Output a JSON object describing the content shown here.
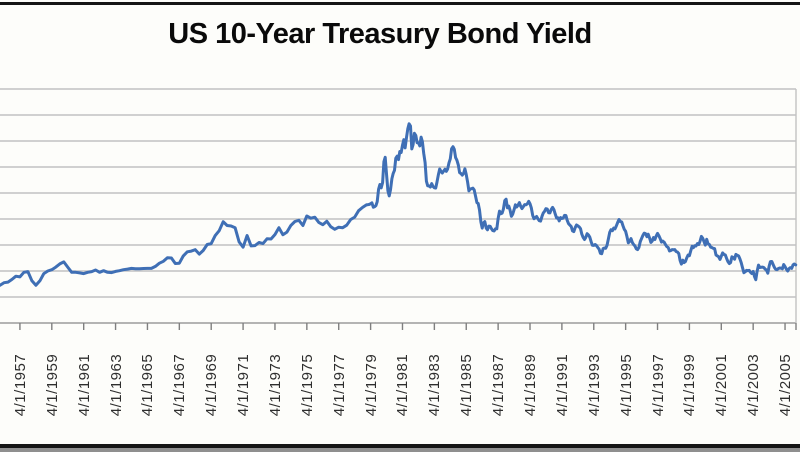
{
  "page": {
    "title": "US 10-Year Treasury Bond Yield"
  },
  "colors": {
    "background": "#fdfdfa",
    "line": "#3f6fb5",
    "gridline": "#c2c2c2",
    "axis": "#9b9b9b",
    "tick": "#7f7f7f",
    "title_text": "#0a0a0a",
    "label_text": "#2e2e2e",
    "frame_bar": "#151515"
  },
  "chart_data": {
    "type": "line",
    "title": "US 10-Year Treasury Bond Yield",
    "xlabel": "",
    "ylabel": "",
    "grid": true,
    "legend": "none",
    "ylim": [
      0,
      18
    ],
    "y_gridline_step": 2,
    "y_axis_labels_visible": false,
    "x_range_years": [
      1956.0,
      2006.2
    ],
    "x_first_tick_year": 1957.25,
    "x_tick_interval_years": 2,
    "x_tick_labels": [
      "4/1/1957",
      "4/1/1959",
      "4/1/1961",
      "4/1/1963",
      "4/1/1965",
      "4/1/1967",
      "4/1/1969",
      "4/1/1971",
      "4/1/1973",
      "4/1/1975",
      "4/1/1977",
      "4/1/1979",
      "4/1/1981",
      "4/1/1983",
      "4/1/1985",
      "4/1/1987",
      "4/1/1989",
      "4/1/1991",
      "4/1/1993",
      "4/1/1995",
      "4/1/1997",
      "4/1/1999",
      "4/1/2001",
      "4/1/2003",
      "4/1/2005"
    ],
    "series": [
      {
        "name": "10-Year Treasury Bond Yield (%)",
        "segments": [
          {
            "start_year": 1956.0,
            "points_per_year": 4,
            "values": [
              2.9,
              3.1,
              3.15,
              3.35,
              3.6,
              3.55,
              3.9,
              3.95,
              3.25,
              2.9,
              3.25,
              3.8,
              4.0,
              4.1,
              4.3,
              4.55,
              4.7,
              4.3,
              3.9,
              3.9,
              3.85,
              3.8,
              3.9,
              3.95,
              4.08,
              3.9,
              4.02,
              3.9,
              3.88,
              3.97,
              4.02,
              4.1,
              4.15,
              4.2,
              4.18,
              4.18,
              4.19,
              4.2,
              4.2,
              4.35,
              4.6,
              4.75,
              5.02,
              5.0,
              4.58,
              4.6,
              5.16,
              5.48,
              5.53,
              5.64,
              5.3,
              5.58,
              6.04,
              6.11,
              6.72,
              7.1,
              7.79,
              7.5,
              7.46,
              7.33,
              6.24,
              5.83,
              6.73,
              5.93,
              5.95,
              6.19,
              6.11,
              6.48,
              6.46,
              6.81,
              7.33,
              6.79,
              6.99,
              7.51,
              7.81,
              7.9,
              7.5,
              8.23,
              8.06,
              8.14,
              7.74,
              7.56,
              7.83,
              7.41,
              7.21,
              7.37,
              7.33,
              7.52,
              7.96,
              8.15,
              8.64,
              8.89
            ]
          },
          {
            "start_year": 1979.0,
            "points_per_year": 12,
            "values": [
              9.1,
              9.1,
              9.12,
              9.18,
              9.25,
              8.91,
              8.95,
              9.03,
              9.33,
              10.3,
              10.65,
              10.39,
              10.8,
              12.41,
              12.75,
              11.47,
              10.18,
              9.78,
              10.25,
              11.1,
              11.51,
              11.75,
              12.68,
              12.84,
              12.57,
              13.19,
              13.12,
              13.68,
              14.1,
              13.47,
              14.28,
              14.94,
              15.32,
              15.15,
              13.39,
              13.72,
              14.59,
              14.43,
              13.86,
              13.87,
              13.62,
              14.3,
              13.95,
              13.06,
              12.34,
              10.91,
              10.55,
              10.54,
              10.46,
              10.72,
              10.51,
              10.4,
              10.38,
              10.85,
              11.38,
              11.85,
              11.65,
              11.54,
              11.69,
              11.83,
              11.67,
              11.84,
              12.32,
              12.63,
              13.41,
              13.56,
              13.36,
              12.72,
              12.52,
              12.16,
              11.57,
              11.5,
              11.38,
              11.51,
              11.86,
              11.43,
              10.85,
              10.16,
              10.31,
              10.33,
              10.37,
              10.24,
              9.78,
              9.26,
              9.19,
              8.7,
              7.78,
              7.3,
              7.71,
              7.8,
              7.3,
              7.17,
              7.45,
              7.43,
              7.25,
              7.11,
              7.08,
              7.25,
              7.25,
              8.02,
              8.61,
              8.4,
              8.45,
              8.76,
              9.42,
              9.52,
              8.86,
              8.99,
              8.67,
              8.21,
              8.37,
              8.72,
              9.09,
              8.92,
              9.06,
              9.26,
              8.98,
              8.8,
              8.96,
              9.11,
              9.09,
              9.17,
              9.36,
              9.18,
              8.86,
              8.28,
              8.02,
              8.11,
              8.19,
              8.01,
              7.87,
              7.84,
              8.21,
              8.47,
              8.59,
              8.79,
              8.76,
              8.48,
              8.47,
              8.75,
              8.89,
              8.72,
              8.39,
              8.08,
              8.09,
              7.85,
              8.11,
              8.04,
              8.07,
              8.28,
              8.27,
              7.9,
              7.65,
              7.53,
              7.42,
              7.09,
              7.03,
              7.34,
              7.54,
              7.48,
              7.39,
              7.26,
              6.84,
              6.59,
              6.42,
              6.59,
              6.87,
              6.77,
              6.6,
              6.26,
              5.98,
              5.97,
              6.04,
              5.96,
              5.81,
              5.68,
              5.36,
              5.33,
              5.72,
              5.77,
              5.75,
              5.97,
              6.48,
              6.97,
              7.18,
              7.1,
              7.3,
              7.24,
              7.46,
              7.74,
              7.96,
              7.81,
              7.78,
              7.47,
              7.2,
              7.06,
              6.63,
              6.17,
              6.28,
              6.49,
              6.2,
              6.04,
              5.93,
              5.71,
              5.65,
              5.81,
              6.27,
              6.51,
              6.74,
              6.91,
              6.87,
              6.64,
              6.83,
              6.53,
              6.2,
              6.3,
              6.58,
              6.42,
              6.69,
              6.89,
              6.71,
              6.49,
              6.22,
              6.3,
              6.21,
              6.03,
              5.88,
              5.81,
              5.54,
              5.57,
              5.65,
              5.64,
              5.65,
              5.5,
              5.46,
              5.34,
              4.81,
              4.53,
              4.83,
              4.65,
              4.72,
              5.0,
              5.23,
              5.18,
              5.54,
              5.9,
              5.79,
              5.94,
              5.92,
              6.11,
              6.03,
              6.28,
              6.66,
              6.52,
              6.26,
              5.99,
              6.44,
              6.1,
              6.05,
              5.83,
              5.8,
              5.74,
              5.72,
              5.24,
              5.16,
              5.1,
              4.89,
              5.14,
              5.39,
              5.28,
              5.24,
              4.97,
              4.73,
              4.57,
              4.65,
              5.09,
              5.04,
              4.91,
              5.28,
              5.21,
              5.16,
              4.93,
              4.65,
              4.26,
              3.87,
              3.94,
              4.05,
              4.03,
              4.05,
              3.9,
              3.81,
              3.96,
              3.57,
              3.33,
              3.98,
              4.45,
              4.27,
              4.29,
              4.3,
              4.27,
              4.15,
              4.08,
              3.83,
              4.35,
              4.72,
              4.73,
              4.5,
              4.28,
              4.13,
              4.1,
              4.19,
              4.23,
              4.22,
              4.17,
              4.5,
              4.34,
              4.14,
              4.0,
              4.18,
              4.26,
              4.2,
              4.46,
              4.54,
              4.47
            ]
          }
        ]
      }
    ]
  }
}
